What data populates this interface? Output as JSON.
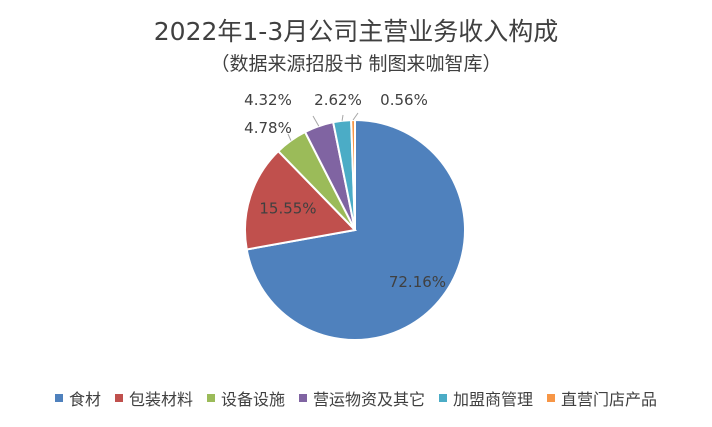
{
  "chart_data": {
    "type": "pie",
    "title": "2022年1-3月公司主营业务收入构成",
    "subtitle": "（数据来源招股书 制图来咖智库）",
    "slices": [
      {
        "label": "食材",
        "value": 72.16,
        "value_label": "72.16%",
        "color": "#4F81BD"
      },
      {
        "label": "包装材料",
        "value": 15.55,
        "value_label": "15.55%",
        "color": "#C0504D"
      },
      {
        "label": "设备设施",
        "value": 4.78,
        "value_label": "4.78%",
        "color": "#9BBB59"
      },
      {
        "label": "营运物资及其它",
        "value": 4.32,
        "value_label": "4.32%",
        "color": "#8064A2"
      },
      {
        "label": "加盟商管理",
        "value": 2.62,
        "value_label": "2.62%",
        "color": "#4BACC6"
      },
      {
        "label": "直营门店产品",
        "value": 0.56,
        "value_label": "0.56%",
        "color": "#F79646"
      }
    ],
    "legend_position": "bottom"
  }
}
